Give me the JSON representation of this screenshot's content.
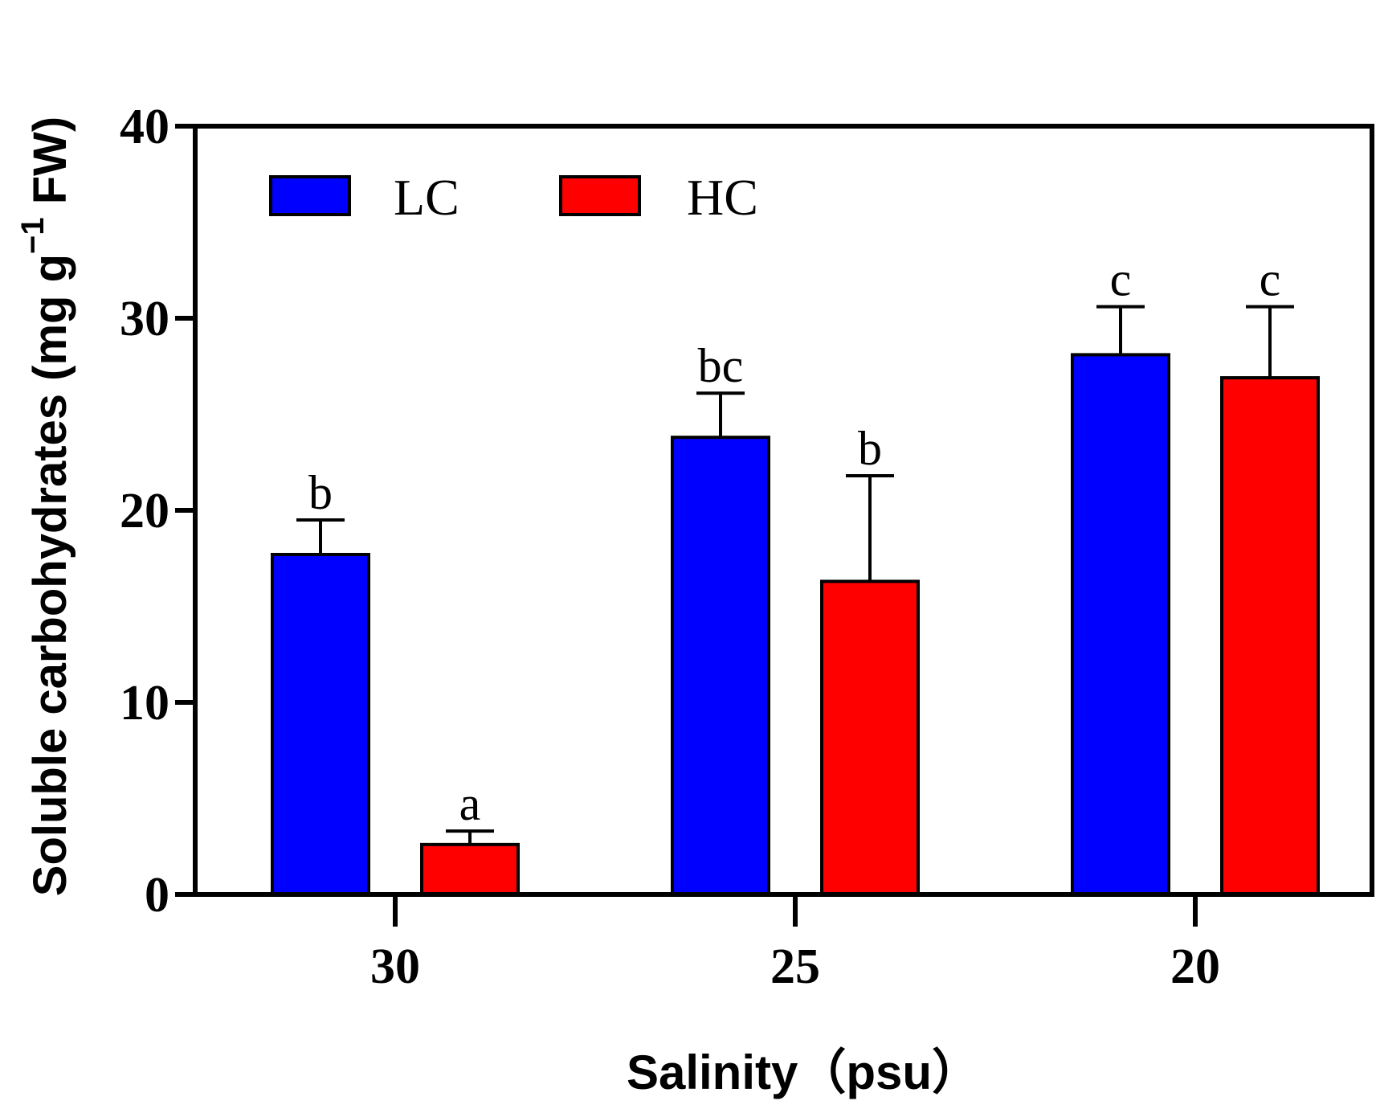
{
  "chart_data": {
    "type": "bar",
    "xlabel": "Salinity（psu）",
    "ylabel": "Soluble carbohydrates (mg g",
    "ylabel_sup": "−1",
    "ylabel_tail": " FW)",
    "ylim": [
      0,
      40
    ],
    "yticks": [
      0,
      10,
      20,
      30,
      40
    ],
    "categories": [
      "30",
      "25",
      "20"
    ],
    "series": [
      {
        "name": "LC",
        "color": "#0000ff",
        "values": [
          17.7,
          23.8,
          28.1
        ],
        "errors": [
          1.8,
          2.3,
          2.5
        ],
        "labels": [
          "b",
          "bc",
          "c"
        ]
      },
      {
        "name": "HC",
        "color": "#ff0000",
        "values": [
          2.6,
          16.3,
          26.9
        ],
        "errors": [
          0.7,
          5.5,
          3.7
        ],
        "labels": [
          "a",
          "b",
          "c"
        ]
      }
    ],
    "legend_position": "top-left"
  }
}
